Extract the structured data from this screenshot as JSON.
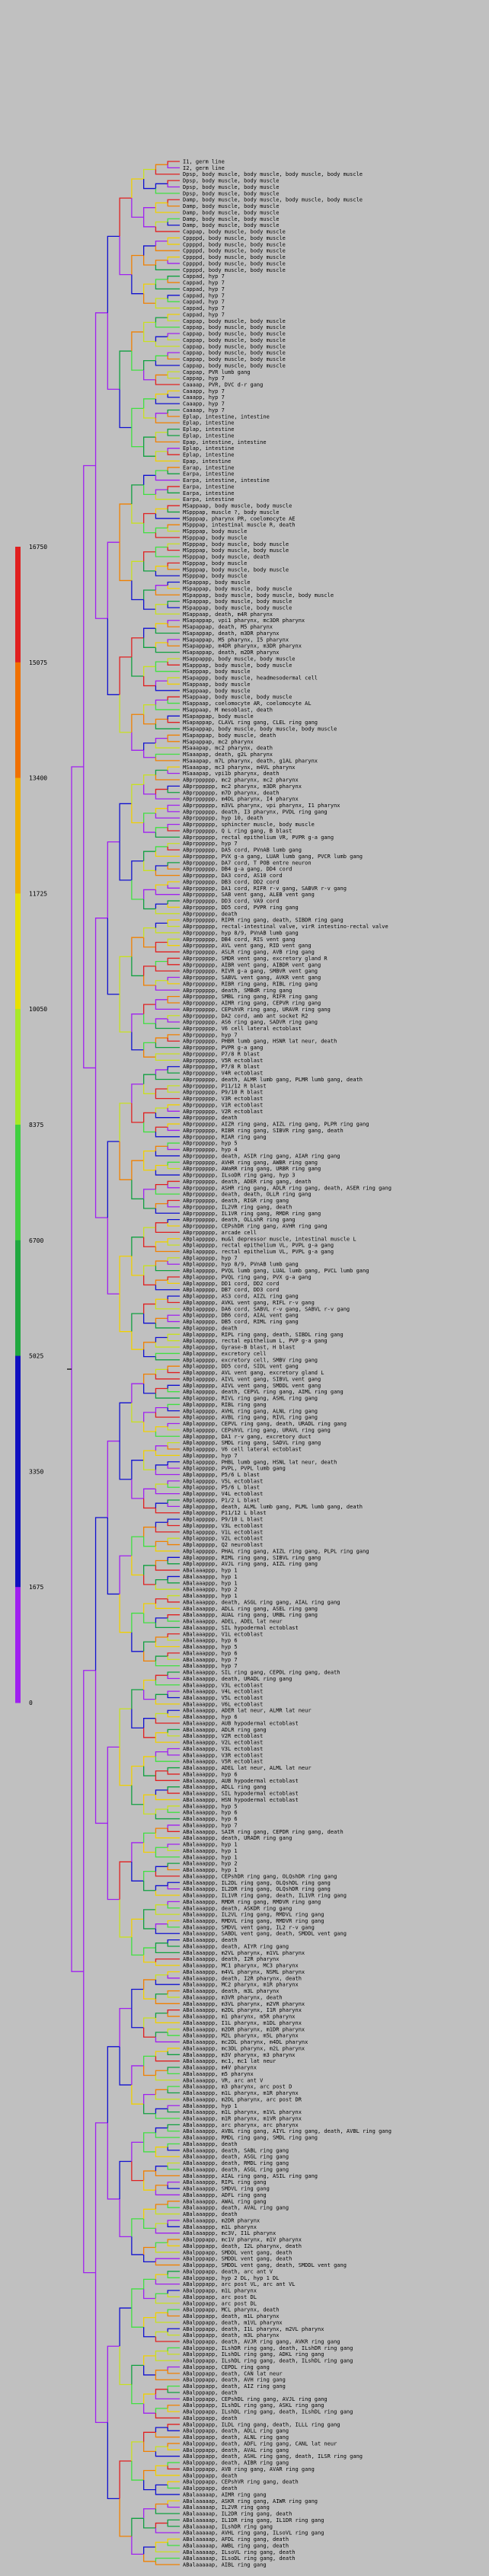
{
  "colorbar": {
    "ticks": [
      "0",
      "1675",
      "3350",
      "5025",
      "6700",
      "8375",
      "10050",
      "11725",
      "13400",
      "15075",
      "16750"
    ],
    "colors": [
      "#a020f0",
      "#1010c0",
      "#0a8a3a",
      "#40e040",
      "#c8e82a",
      "#f0d000",
      "#f08000",
      "#e02020"
    ]
  },
  "tree": {
    "labels": [
      "I1, germ line",
      "I2, germ line",
      "Dpsp, body muscle, body muscle, body muscle, body muscle",
      "Dpsp, body muscle, body muscle",
      "Dpsp, body muscle, body muscle",
      "Dpsp, body muscle, body muscle",
      "Damp, body muscle, body muscle, body muscle, body muscle",
      "Damp, body muscle, body muscle",
      "Damp, body muscle, body muscle",
      "Damp, body muscle, body muscle",
      "Damp, body muscle, body muscle",
      "Cappap, body muscle, body muscle",
      "Cppppd, body muscle, body muscle",
      "Cppppd, body muscle, body muscle",
      "Cppppd, body muscle, body muscle",
      "Cppppd, body muscle, body muscle",
      "Cppppd, body muscle, body muscle",
      "Cppppd, body muscle, body muscle",
      "Cappad, hyp 7",
      "Cappad, hyp 7",
      "Cappad, hyp 7",
      "Cappad, hyp 7",
      "Cappad, hyp 7",
      "Cappad, hyp 7",
      "Cappad, hyp 7",
      "Cappap, body muscle, body muscle",
      "Cappap, body muscle, body muscle",
      "Cappap, body muscle, body muscle",
      "Cappap, body muscle, body muscle",
      "Cappap, body muscle, body muscle",
      "Cappap, body muscle, body muscle",
      "Cappap, body muscle, body muscle",
      "Cappap, body muscle, body muscle",
      "Cappap, PVR lumb gang",
      "Cappap, hyp 7",
      "Caaaap, PVR, DVC d-r gang",
      "Caaapp, hyp 7",
      "Caaapp, hyp 7",
      "Caaapp, hyp 7",
      "Caaaap, hyp 7",
      "Eplap, intestine, intestine",
      "Eplap, intestine",
      "Eplap, intestine",
      "Eplap, intestine",
      "Epap, intestine, intestine",
      "Eplap, intestine",
      "Eplap, intestine",
      "Epap, intestine",
      "Earap, intestine",
      "Earpa, intestine",
      "Earpa, intestine, intestine",
      "Earpa, intestine",
      "Earpa, intestine",
      "Earpa, intestine",
      "MSappaap, body muscle, body muscle",
      "MSpppap, muscle ?, body muscle",
      "MSpppap, pharynx PR, coelomocyte AE",
      "MSpppap, intestinal muscle R, death",
      "MSpppap, body muscle",
      "MSpppap, body muscle",
      "MSpppap, body muscle, body muscle",
      "MSpppap, body muscle, body muscle",
      "MSpppap, body muscle, death",
      "MSpppap, body muscle",
      "MSpppap, body muscle, body muscle",
      "MSpppap, body muscle",
      "MSpappap, body muscle",
      "MSpappap, body muscle, body muscle",
      "MSpappap, body muscle, body muscle, body muscle",
      "MSpappap, body muscle, body muscle",
      "MSpappap, body muscle, body muscle",
      "MSappaap, death, m4R pharynx",
      "MSapappap, vpi1 pharynx, mc3DR pharynx",
      "MSapappap, death, M5 pharynx",
      "MSapappap, death, m3DR pharynx",
      "MSapappap, M5 pharynx, I5 pharynx",
      "MSapappap, m4DR pharynx, m3DR pharynx",
      "MSapappap, death, m2DR pharynx",
      "MSappappp, body muscle, body muscle",
      "MSapppap, body muscle, body muscle",
      "MSapppap, body muscle",
      "MSapappp, body muscle, headmesodermal cell",
      "MSappaap, body muscle",
      "MSappaap, body muscle",
      "MSappaap, body muscle, body muscle",
      "MSappaap, coelomocyte AR, coelomocyte AL",
      "MSappaap, M mesoblast, death",
      "MSapappap, body muscle",
      "MSapappap, CLAVL ring gang, CLEL ring gang",
      "MSapappap, body muscle, body muscle, body muscle",
      "MSapappap, body muscle, death",
      "MSapappap, mc2 pharynx",
      "MSaaapap, mc2 pharynx, death",
      "MSaaapap, death, g2L pharynx",
      "MSaaapap, m7L pharynx, death, g1AL pharynx",
      "MSaaapap, mc3 pharynx, m4VL pharynx",
      "MSaaapap, vpi1b pharynx, death",
      "ABprpppppp, mc2 pharynx, mc2 pharynx",
      "ABprpppppp, mc2 pharynx, m3DR pharynx",
      "ABprpppppp, m7D pharynx, death",
      "ABprpppppp, m4DL pharynx, I4 pharynx",
      "ABprpppppp, m3VL pharynx, vpi pharynx, I1 pharynx",
      "ABprpppppp, death, I3 pharynx, PVDL ring gang",
      "ABprpppppp, hyp 10, death",
      "ABprpppppp, sphincter muscle, body muscle",
      "ABprpppppp, Q L ring gang, B blast",
      "ABprpppppp, rectal epithelium VR, PVPR g-a gang",
      "ABprpppppp, hyp 7",
      "ABprpppppp, DA5 cord, PVnAB lumb gang",
      "ABprpppppp, PVX g-a gang, LUAR lumb gang, PVCR lumb gang",
      "ABprpppppp, DA7 cord, T POB entre neuron",
      "ABprpppppp, DB4 g-a gang, DD4 cord",
      "ABprpppppp, DA3 cord, AS10 cord",
      "ABprpppppp, DB3 cord, DD2 cord",
      "ABprpppppp, DA1 cord, RIFR r-v gang, SABVR r-v gang",
      "ABprpppppp, SAB vent gang, ALEB vent gang",
      "ABprpppppp, DD3 cord, VA9 cord",
      "ABprpppppp, DD5 cord, PVPR ring gang",
      "ABprpppppp, death",
      "ABprpppppp, RIPR ring gang, death, SIBDR ring gang",
      "ABprpppppp, rectal-intestinal valve, virR intestino-rectal valve",
      "ABprpppppp, hyp 8/9, PVnAB lumb gang",
      "ABprpppppp, DB4 cord, RIS vent gang",
      "ABprpppppp, AVL vent gang, RID vent gang",
      "ABprpppppp, ASLR ring gang, AVB ring gang",
      "ABprpppppp, SMDR vent gang, excretory gland R",
      "ABprpppppp, AIBR vent gang, AIBDR vent gang",
      "ABprpppppp, RIVR g-a gang, SMBVR vent gang",
      "ABprpppppp, SABVL vent gang, AVKR vent gang",
      "ABprpppppp, RIBR ring gang, RIBL ring gang",
      "ABprpppppp, death, SMBdR ring gang",
      "ABprpppppp, SMBL ring gang, RIFR ring gang",
      "ABprpppppp, AIMR ring gang, CEPVR ring gang",
      "ABprpppppp, CEPshVR ring gang, URAVR ring gang",
      "ABprpppppp, DA2 cord, amb ant socket R2",
      "ABprpppppp, AS6 ring gang, SADVR ring gang",
      "ABprpppppp, V6 cell lateral ectoblast",
      "ABprpppppp, hyp 7",
      "ABprpppppp, PHBR lumb gang, HSNR lat neur, death",
      "ABprpppppp, PVPR g-a gang",
      "ABprpppppp, P7/8 R blast",
      "ABprpppppp, V5R ectoblast",
      "ABprpppppp, P7/8 R blast",
      "ABprpppppp, V4R ectoblast",
      "ABprpppppp, death, ALMR lumb gang, PLMR lumb gang, death",
      "ABprpppppp, P11/12 R blast",
      "ABprpppppp, P9/10 R blast",
      "ABprpppppp, V3R ectoblast",
      "ABprpppppp, V1R ectoblast",
      "ABprpppppp, V2R ectoblast",
      "ABprpppppp, death",
      "ABprpppppp, AIZR ring gang, AIZL ring gang, PLPR ring gang",
      "ABprpppppp, RIBR ring gang, SIBVR ring gang, death",
      "ABprpppppp, RIAR ring gang",
      "ABprpppppp, hyp 5",
      "ABprpppppp, hyp 4",
      "ABprpppppp, death, ASIR ring gang, AIAR ring gang",
      "ABprpppppp, AVHR ring gang, AWBR ring gang",
      "ABprpppppp, AWaRR ring gang, URBR ring gang",
      "ABprpppppp, ILsoDR ring gang, hyp 3",
      "ABprpppppp, death, ADER ring gang, death",
      "ABprpppppp, ASHR ring gang, ADLR ring gang, death, ASER ring gang",
      "ABprpppppp, death, death, OLLR ring gang",
      "ABprpppppp, death, RIGR ring gang",
      "ABprpppppp, IL2VR ring gang, death",
      "ABprpppppp, IL1VR ring gang, RMDR ring gang",
      "ABprpppppp, death, OLLshR ring gang",
      "ABprpppppp, CEPshDR ring gang, AVHR ring gang",
      "ABprpppppp, arcade cell",
      "ABplappppp, mu&l depressor muscle, intestinal muscle L",
      "ABplappppp, rectal epithelium VL, PVPL g-a gang",
      "ABplappppp, rectal epithelium VL, PVPL g-a gang",
      "ABplappppp, hyp 7",
      "ABplappppp, hyp 8/9, PVnAB lumb gang",
      "ABplappppp, PVQL lumb gang, LUAL lumb gang, PVCL lumb gang",
      "ABplappppp, PVQL ring gang, PVX g-a gang",
      "ABplappppp, DD1 cord, DD2 cord",
      "ABplappppp, DB7 cord, DD3 cord",
      "ABplappppp, AS3 cord, AIZL ring gang",
      "ABplappppp, AVKL vent gang, RIFL r-v gang",
      "ABplappppp, DA6 cord, SABVL r-v gang, SABVL r-v gang",
      "ABplappppp, DB6 cord, AIAL vent gang",
      "ABplappppp, DB5 cord, RIML ring gang",
      "ABplappppp, death",
      "ABplappppp, RIPL ring gang, death, SIBDL ring gang",
      "ABplappppp, rectal epithelium L, PVP g-a gang",
      "ABplappppp, Gyrase-B blast, H blast",
      "ABplappppp, excretory cell",
      "ABplappppp, excretory cell, SMBV ring gang",
      "ABplappppp, DD5 cord, SIDL vent gang",
      "ABplappppp, AVL vent gang, excretory gland L",
      "ABplappppp, AIVL vent gang, SIBVL vent gang",
      "ABplappppp, AIVL vent gang, SMDDL vent gang",
      "ABplappppp, death, CEPVL ring gang, AIML ring gang",
      "ABplappppp, RIVL ring gang, ASHL ring gang",
      "ABplappppp, RIBL ring gang",
      "ABplappppp, AVHL ring gang, ALNL ring gang",
      "ABplappppp, AVBL ring gang, RIVL ring gang",
      "ABplappppp, CEPVL ring gang, death, URADL ring gang",
      "ABplappppp, CEPshVL ring gang, URAVL ring gang",
      "ABplappppp, DA1 r-v gang, excretory duct",
      "ABplappppp, SMDL ring gang, SADVL ring gang",
      "ABplappppp, V6 cell lateral ectoblast",
      "ABplappppp, hyp 7",
      "ABplappppp, PHBL lumb gang, HSNL lat neur, death",
      "ABplappppp, PVPL, PVPL lumb gang",
      "ABplappppp, P5/6 L blast",
      "ABplappppp, V5L ectoblast",
      "ABplappppp, P5/6 L blast",
      "ABplappppp, V4L ectoblast",
      "ABplappppp, P1/2 L blast",
      "ABplappppp, death, ALML lumb gang, PLML lumb gang, death",
      "ABplappppp, P11/12 L blast",
      "ABplappppp, P9/10 L blast",
      "ABplappppp, V3L ectoblast",
      "ABplappppp, V1L ectoblast",
      "ABplappppp, V2L ectoblast",
      "ABplappppp, Q2 neuroblast",
      "ABplappppp, PHAL ring gang, AIZL ring gang, PLPL ring gang",
      "ABplappppp, RIML ring gang, SIBVL ring gang",
      "ABplappppp, AVJL ring gang, AIZL ring gang",
      "ABalaaappp, hyp 1",
      "ABalaaappp, hyp 1",
      "ABalaaappp, hyp 1",
      "ABalaaappp, hyp 2",
      "ABalaaappp, hyp 1",
      "ABalaaappp, death, ASGL ring gang, AIAL ring gang",
      "ABalaaappp, ADLL ring gang, ASEL ring gang",
      "ABalaaappp, AUAL ring gang, URBL ring gang",
      "ABalaaappp, ADEL, ADEL lat neur",
      "ABalaaappp, SIL hypodermal ectoblast",
      "ABalaaappp, V1L ectoblast",
      "ABalaaappp, hyp 6",
      "ABalaaappp, hyp 5",
      "ABalaaappp, hyp 6",
      "ABalaaappp, hyp 7",
      "ABalaaappp, hyp 7",
      "ABalaaappp, SIL ring gang, CEPDL ring gang, death",
      "ABalaaappp, death, URADL ring gang",
      "ABalaaappp, V3L ectoblast",
      "ABalaaappp, V4L ectoblast",
      "ABalaaappp, V5L ectoblast",
      "ABalaaappp, V6L ectoblast",
      "ABalaaappp, ADER lat neur, ALMR lat neur",
      "ABalaaappp, hyp 6",
      "ABalaaappp, AUB hypodermal ectoblast",
      "ABalaaappp, ADLR ring gang",
      "ABalaaappp, V2R ectoblast",
      "ABalaaappp, V2L ectoblast",
      "ABalaaappp, V3L ectoblast",
      "ABalaaappp, V3R ectoblast",
      "ABalaaappp, V5R ectoblast",
      "ABalaaappp, ADEL lat neur, ALML lat neur",
      "ABalaaappp, hyp 6",
      "ABalaaappp, AUB hypodermal ectoblast",
      "ABalaaappp, ADLL ring gang",
      "ABalaaappp, SIL hypodermal ectoblast",
      "ABalaaappp, HSN hypodermal ectoblast",
      "ABalaaappp, hyp 5",
      "ABalaaappp, hyp 6",
      "ABalaaappp, hyp 6",
      "ABalaaappp, hyp 7",
      "ABalaaappp, SAIR ring gang, CEPDR ring gang, death",
      "ABalaaappp, death, URADR ring gang",
      "ABalaaappp, hyp 1",
      "ABalaaappp, hyp 1",
      "ABalaaappp, hyp 1",
      "ABalaaappp, hyp 2",
      "ABalaaappp, hyp 1",
      "ABalaaappp, CEPshDR ring gang, OLQshDR ring gang",
      "ABalaaappp, IL2DL ring gang, OLQshDL ring gang",
      "ABalaaappp, IL2DR ring gang, OLQshDR ring gang",
      "ABalaaappp, IL1VR ring gang, death, IL1VR ring gang",
      "ABalaaappp, RMDR ring gang, RMDVR ring gang",
      "ABalaaappp, death, ASKDR ring gang",
      "ABalaaappp, IL2VL ring gang, RMDVL ring gang",
      "ABalaaappp, RMDVL ring gang, RMDVR ring gang",
      "ABalaaappp, SMDVL vent gang, IL2 r-v gang",
      "ABalaaappp, SABDL vent gang, death, SMDDL vent gang",
      "ABalaaappp, death",
      "ABalaaappp, death, AIYR ring gang",
      "ABalaaappp, m2VL pharynx, m1VL pharynx",
      "ABalaaappp, death, I2R pharynx",
      "ABalaaappp, MC1 pharynx, MC3 pharynx",
      "ABalaaappp, m4VL pharynx, NSML pharynx",
      "ABalaaappp, death, I2R pharynx, death",
      "ABalaaappp, MC2 pharynx, m1R pharynx",
      "ABalaaappp, death, m3L pharynx",
      "ABalaaappp, m3VR pharynx, death",
      "ABalaaappp, m3VL pharynx, m2VR pharynx",
      "ABalaaappp, m2DL pharynx, I1R pharynx",
      "ABalaaappp, m1 pharynx, m5R pharynx",
      "ABalaaappp, I1L pharynx, m1DL pharynx",
      "ABalaaappp, m2DR pharynx, m1DR pharynx",
      "ABalaaappp, M2L pharynx, m5L pharynx",
      "ABalaaappp, mc2DL pharynx, m4DL pharynx",
      "ABalaaappp, mc3DL pharynx, m2L pharynx",
      "ABalaaappp, m3V pharynx, m3 pharynx",
      "ABalaaappp, mc1, mc1 lat neur",
      "ABalaaappp, m4V pharynx",
      "ABalaaappp, m5 pharynx",
      "ABalaaappp, VR, arc ant V",
      "ABalaaappp, m3 pharynx, arc post D",
      "ABalaaappp, m1L pharynx, m1R pharynx",
      "ABalaaappp, m2DL pharynx, arc post DR",
      "ABalaaappp, hyp 1",
      "ABalaaappp, m1L pharynx, m1VL pharynx",
      "ABalaaappp, m1R pharynx, m1VR pharynx",
      "ABalaaappp, arc pharynx, arc pharynx",
      "ABalaaappp, AVBL ring gang, AIYL ring gang, death, AVBL ring gang",
      "ABalaaappp, RMDL ring gang, SMDL ring gang",
      "ABalaaappp, death",
      "ABalaaappp, death, SABL ring gang",
      "ABalaaappp, death, ASGL ring gang",
      "ABalaaappp, death, RMDL ring gang",
      "ABalaaappp, death, ASGL ring gang",
      "ABalaaappp, AIAL ring gang, ASIL ring gang",
      "ABalaaappp, RIPL ring gang",
      "ABalaaappp, SMDVL ring gang",
      "ABalaaappp, ADFL ring gang",
      "ABalaaappp, AWAL ring gang",
      "ABalaaappp, death, AVAL ring gang",
      "ABalaaappp, death",
      "ABalaaappp, m2DR pharynx",
      "ABalaaappp, m1L pharynx",
      "ABalaaappp, mc3V, I1L pharynx",
      "ABalpppapp, mc1V pharynx, m1V pharynx",
      "ABalpppapp, death, I2L pharynx, death",
      "ABalpppapp, SMDDL vent gang, death",
      "ABalpppapp, SMDDL vent gang, death",
      "ABalpppapp, SMDDL vent gang, death, SMDDL vent gang",
      "ABalpppapp, death, arc ant V",
      "ABalpppapp, hyp 2 DL, hyp 1 DL",
      "ABalpppapp, arc post VL, arc ant VL",
      "ABalpppapp, m1L pharynx",
      "ABalpppapp, arc post DL",
      "ABalpppapp, arc post DL",
      "ABalpppapp, MCL pharynx, death",
      "ABalpppapp, death, m1L pharynx",
      "ABalpppapp, death, m1VL pharynx",
      "ABalpppapp, death, I1L pharynx, m2VL pharynx",
      "ABalpppapp, death, m3L pharynx",
      "ABalpppapp, death, AVJR ring gang, AVKR ring gang",
      "ABalpppapp, ILshDR ring gang, death, ILshDR ring gang",
      "ABalpppapp, ILshDL ring gang, ADKL ring gang",
      "ABalpppapp, ILshDL ring gang, death, ILshDL ring gang",
      "ABalpppapp, CEPDL ring gang",
      "ABalpppapp, death, CAN lat neur",
      "ABalpppapp, death, AVH ring gang",
      "ABalpppapp, death, AIZ ring gang",
      "ABalpppapp, death",
      "ABalpppapp, CEPshDL ring gang, AVJL ring gang",
      "ABalpppapp, ILshDL ring gang, ASKL ring gang",
      "ABalpppapp, ILshDL ring gang, death, ILshDL ring gang",
      "ABalpppapp, death",
      "ABalpppapp, ILDL ring gang, death, ILLL ring gang",
      "ABalpppapp, death, ADLL ring gang",
      "ABalpppapp, death, ALNL ring gang",
      "ABalpppapp, death, ADFL ring gang, CANL lat neur",
      "ABalpppapp, death, AVAL ring gang",
      "ABalpppapp, death, ASHL ring gang, death, ILSR ring gang",
      "ABalpppapp, death, AIBR ring gang",
      "ABalpppapp, AVB ring gang, AVAR ring gang",
      "ABalpppapp, death",
      "ABalpppapp, CEPshVR ring gang, death",
      "ABalpppapp, death",
      "ABalaaaaap, AIMR ring gang",
      "ABalaaaaap, ASKR ring gang, AIWR ring gang",
      "ABalaaaaap, IL2VR ring gang",
      "ABalaaaaap, IL2DR ring gang, death",
      "ABalaaaaap, IL1DR ring gang, IL1DR ring gang",
      "ABalaaaaap, ILshDR ring gang",
      "ABalaaaaap, AVHL ring gang, ILsoVL ring gang",
      "ABalaaaaap, AFDL ring gang, death",
      "ABalaaaaap, AWBL ring gang, death",
      "ABalaaaaap, ILsoVL ring gang, death",
      "ABalaaaaap, ILsoDL ring gang, death",
      "ABalaaaaap, AIBL ring gang"
    ]
  }
}
